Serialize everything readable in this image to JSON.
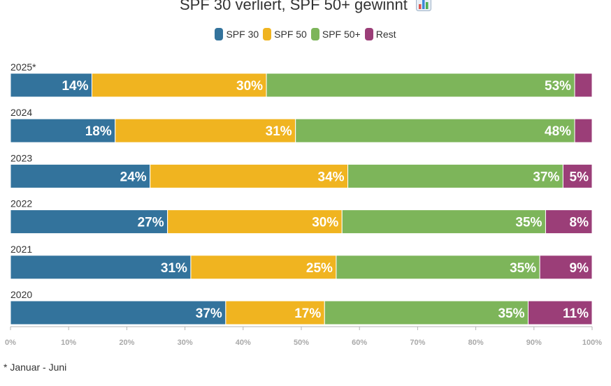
{
  "colors": {
    "spf30": "#33739c",
    "spf50": "#f0b420",
    "spf50plus": "#7db55a",
    "rest": "#9b3e78",
    "axis": "#b5b5b5"
  },
  "title": "SPF 30 verliert, SPF 50+ gewinnt",
  "title_icon": "bar-chart-icon",
  "footnote": "* Januar - Juni",
  "chart_data": {
    "type": "bar",
    "orientation": "horizontal",
    "stacked": true,
    "title": "SPF 30 verliert, SPF 50+ gewinnt",
    "categories": [
      "2025*",
      "2024",
      "2023",
      "2022",
      "2021",
      "2020"
    ],
    "series": [
      {
        "name": "SPF 30",
        "color": "#33739c",
        "values": [
          14,
          18,
          24,
          27,
          31,
          37
        ],
        "labels": [
          "14%",
          "18%",
          "24%",
          "27%",
          "31%",
          "37%"
        ]
      },
      {
        "name": "SPF 50",
        "color": "#f0b420",
        "values": [
          30,
          31,
          34,
          30,
          25,
          17
        ],
        "labels": [
          "30%",
          "31%",
          "34%",
          "30%",
          "25%",
          "17%"
        ]
      },
      {
        "name": "SPF 50+",
        "color": "#7db55a",
        "values": [
          53,
          48,
          37,
          35,
          35,
          35
        ],
        "labels": [
          "53%",
          "48%",
          "37%",
          "35%",
          "35%",
          "35%"
        ]
      },
      {
        "name": "Rest",
        "color": "#9b3e78",
        "values": [
          3,
          3,
          5,
          8,
          9,
          11
        ],
        "labels": [
          "",
          "",
          "5%",
          "8%",
          "9%",
          "11%"
        ]
      }
    ],
    "xlim": [
      0,
      100
    ],
    "xticks": [
      0,
      10,
      20,
      30,
      40,
      50,
      60,
      70,
      80,
      90,
      100
    ],
    "xtick_labels": [
      "0%",
      "10%",
      "20%",
      "30%",
      "40%",
      "50%",
      "60%",
      "70%",
      "80%",
      "90%",
      "100%"
    ],
    "legend_position": "top-center"
  }
}
